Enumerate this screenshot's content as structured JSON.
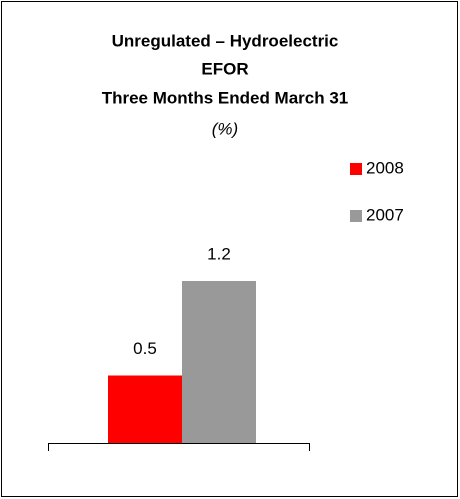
{
  "chart_data": {
    "type": "bar",
    "title": [
      "Unregulated – Hydroelectric",
      "EFOR",
      "Three Months Ended March 31"
    ],
    "subtitle": "(%)",
    "categories": [
      null
    ],
    "series": [
      {
        "name": "2008",
        "color": "#ff0000",
        "values": [
          0.5
        ]
      },
      {
        "name": "2007",
        "color": "#999999",
        "values": [
          1.2
        ]
      }
    ],
    "ylim": [
      0,
      1.6
    ],
    "legend": "right"
  }
}
